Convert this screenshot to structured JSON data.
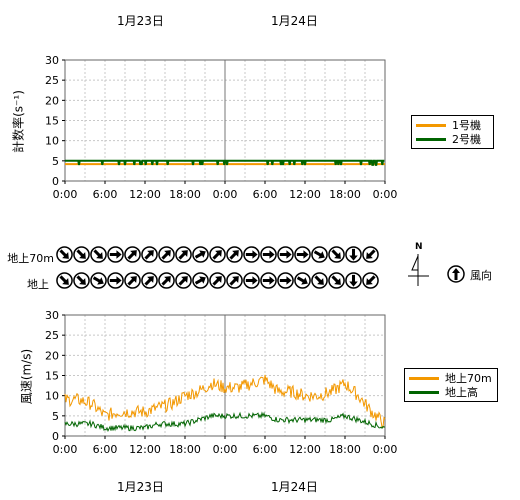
{
  "dates": [
    "1月23日",
    "1月24日"
  ],
  "time_ticks": [
    "0:00",
    "6:00",
    "12:00",
    "18:00",
    "0:00",
    "6:00",
    "12:00",
    "18:00",
    "0:00"
  ],
  "count_chart": {
    "ylabel": "計数率(s⁻¹)",
    "yticks": [
      "0",
      "5",
      "10",
      "15",
      "20",
      "25",
      "30"
    ],
    "legend": [
      {
        "name": "1号機",
        "color": "#f39800"
      },
      {
        "name": "2号機",
        "color": "#006400"
      }
    ]
  },
  "wind_section": {
    "row_labels": [
      "地上70m",
      "地上"
    ],
    "compass_label": "N",
    "legend_label": "風向",
    "upper_angles": [
      135,
      135,
      135,
      90,
      45,
      45,
      45,
      45,
      60,
      45,
      45,
      90,
      90,
      90,
      90,
      120,
      135,
      180,
      225
    ],
    "lower_angles": [
      135,
      135,
      120,
      90,
      45,
      45,
      45,
      45,
      60,
      45,
      45,
      90,
      90,
      90,
      120,
      135,
      135,
      180,
      225
    ]
  },
  "wind_chart": {
    "ylabel": "風速(m/s)",
    "yticks": [
      "0",
      "5",
      "10",
      "15",
      "20",
      "25",
      "30"
    ],
    "legend": [
      {
        "name": "地上70m",
        "color": "#f39800"
      },
      {
        "name": "地上高",
        "color": "#006400"
      }
    ]
  },
  "chart_data": [
    {
      "type": "line",
      "ylabel": "計数率(s⁻¹)",
      "ylim": [
        0,
        30
      ],
      "x_range_hours": [
        0,
        48
      ],
      "series": [
        {
          "name": "1号機",
          "x": [
            0,
            48
          ],
          "values": [
            4.2,
            4.2
          ]
        },
        {
          "name": "2号機",
          "x": [
            0,
            6,
            12,
            18,
            24,
            30,
            36,
            42,
            48
          ],
          "values": [
            5,
            5,
            5,
            5,
            5,
            5,
            5,
            5,
            5
          ]
        }
      ]
    },
    {
      "type": "line",
      "ylabel": "風速(m/s)",
      "ylim": [
        0,
        30
      ],
      "x_range_hours": [
        0,
        48
      ],
      "series": [
        {
          "name": "地上70m",
          "x": [
            0,
            2,
            4,
            6,
            8,
            10,
            12,
            14,
            16,
            18,
            20,
            22,
            24,
            26,
            28,
            30,
            32,
            34,
            36,
            38,
            40,
            42,
            44,
            46,
            48
          ],
          "values": [
            9,
            9,
            8,
            5,
            6,
            6,
            6,
            7,
            8,
            10,
            11,
            13,
            12,
            12,
            13,
            14,
            11,
            11,
            10,
            10,
            11,
            13,
            10,
            6,
            3
          ]
        },
        {
          "name": "地上高",
          "x": [
            0,
            2,
            4,
            6,
            8,
            10,
            12,
            14,
            16,
            18,
            20,
            22,
            24,
            26,
            28,
            30,
            32,
            34,
            36,
            38,
            40,
            42,
            44,
            46,
            48
          ],
          "values": [
            3,
            3,
            3,
            2,
            2,
            2,
            2,
            3,
            3,
            3,
            4,
            5,
            5,
            5,
            5,
            5,
            4,
            4,
            4,
            4,
            4,
            5,
            4,
            3,
            2
          ]
        }
      ]
    }
  ]
}
